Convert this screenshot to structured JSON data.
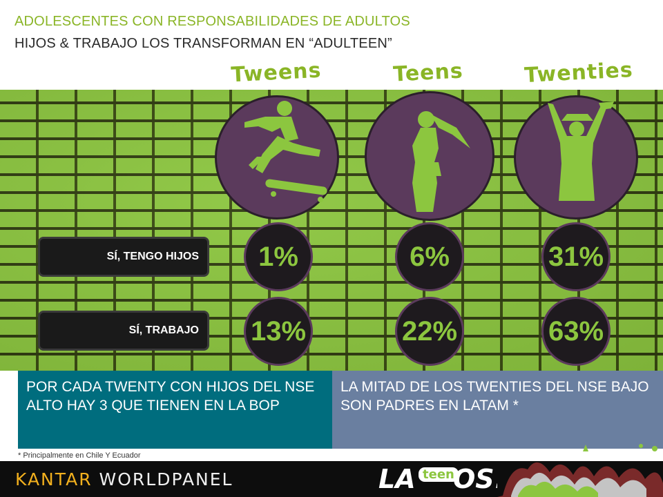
{
  "header": {
    "title": "ADOLESCENTES CON RESPONSABILIDADES DE ADULTOS",
    "subtitle": "HIJOS & TRABAJO LOS TRANSFORMAN EN “ADULTEEN”"
  },
  "groups": [
    {
      "label": "Tweens",
      "icon": "skateboarder-icon"
    },
    {
      "label": "Teens",
      "icon": "girl-silhouette-icon"
    },
    {
      "label": "Twenties",
      "icon": "graduate-icon"
    }
  ],
  "rows": [
    {
      "label": "SÍ, TENGO HIJOS"
    },
    {
      "label": "SÍ, TRABAJO"
    }
  ],
  "chart_data": {
    "type": "table",
    "categories": [
      "Tweens",
      "Teens",
      "Twenties"
    ],
    "series": [
      {
        "name": "SÍ, TENGO HIJOS",
        "values": [
          1,
          6,
          31
        ],
        "labels": [
          "1%",
          "6%",
          "31%"
        ]
      },
      {
        "name": "SÍ, TRABAJO",
        "values": [
          13,
          22,
          63
        ],
        "labels": [
          "13%",
          "22%",
          "63%"
        ]
      }
    ],
    "unit": "%"
  },
  "boxes": {
    "left": "POR CADA TWENTY CON HIJOS DEL NSE ALTO HAY 3 QUE TIENEN EN LA BOP",
    "right": "LA MITAD DE LOS TWENTIES DEL NSE BAJO SON PADRES EN LATAM *"
  },
  "footnote": "* Principalmente en Chile Y Ecuador",
  "footer": {
    "brand_part1": "KANTAR",
    "brand_part2": "WORLDPANEL",
    "logo_la": "LA",
    "logo_teen": "teen",
    "logo_os": "OS!"
  },
  "colors": {
    "accent_green": "#8cc63f",
    "circle_purple": "#5b3a5c",
    "box_teal": "#006d7e",
    "box_blue": "#6a7fa0"
  }
}
